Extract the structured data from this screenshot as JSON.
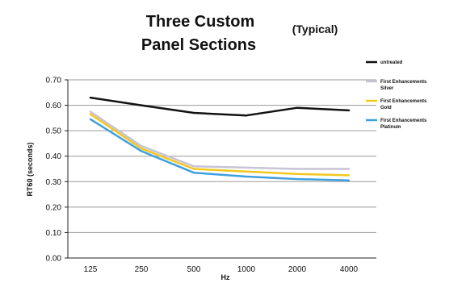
{
  "chart_data": {
    "type": "line",
    "title_line1": "Three  Custom",
    "title_line2": "Panel Sections",
    "subtitle": "(Typical)",
    "xlabel": "Hz",
    "ylabel": "RT60 (seconds)",
    "categories": [
      "125",
      "250",
      "500",
      "1000",
      "2000",
      "4000"
    ],
    "ylim": [
      0,
      0.7
    ],
    "yticks": [
      "0.00",
      "0.10",
      "0.20",
      "0.30",
      "0.40",
      "0.50",
      "0.60",
      "0.70"
    ],
    "grid": true,
    "legend_position": "right",
    "series": [
      {
        "name": "untreated",
        "legend": [
          "untreated"
        ],
        "color": "#111111",
        "values": [
          0.63,
          0.6,
          0.57,
          0.56,
          0.59,
          0.58
        ]
      },
      {
        "name": "First Enhancements Silver",
        "legend": [
          "First Enhancements",
          "Silver"
        ],
        "color": "#c8c3d6",
        "values": [
          0.575,
          0.44,
          0.36,
          0.355,
          0.35,
          0.35
        ]
      },
      {
        "name": "First Enhancements Gold",
        "legend": [
          "First Enhancements",
          "Gold"
        ],
        "color": "#f2c81f",
        "values": [
          0.565,
          0.43,
          0.35,
          0.34,
          0.33,
          0.325
        ]
      },
      {
        "name": "First Enhancements Platinum",
        "legend": [
          "First Enhancements",
          "Platinum"
        ],
        "color": "#3f9fe0",
        "values": [
          0.545,
          0.42,
          0.335,
          0.32,
          0.31,
          0.305
        ]
      }
    ]
  }
}
